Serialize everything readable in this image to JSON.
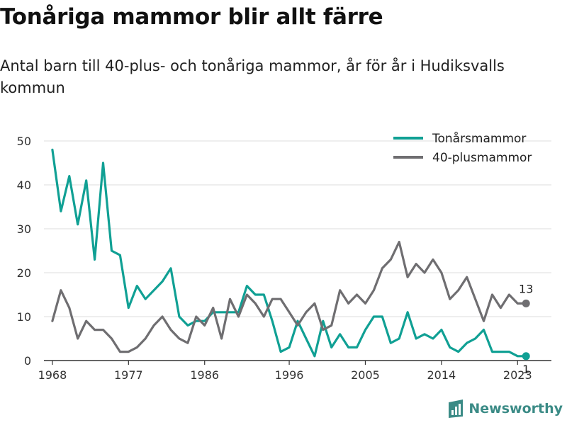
{
  "header": {
    "title": "Tonåriga mammor blir allt färre",
    "subtitle": "Antal barn till 40-plus- och tonåriga mammor, år för år i Hudiksvalls kommun"
  },
  "brand": {
    "name": "Newsworthy",
    "icon": "bar-chart-logo-icon"
  },
  "colors": {
    "teal": "#10a094",
    "gray": "#6f6e71",
    "grid": "#dddddd",
    "axis": "#333333"
  },
  "chart_data": {
    "type": "line",
    "x": [
      1968,
      1969,
      1970,
      1971,
      1972,
      1973,
      1974,
      1975,
      1976,
      1977,
      1978,
      1979,
      1980,
      1981,
      1982,
      1983,
      1984,
      1985,
      1986,
      1987,
      1988,
      1989,
      1990,
      1991,
      1992,
      1993,
      1994,
      1995,
      1996,
      1997,
      1998,
      1999,
      2000,
      2001,
      2002,
      2003,
      2004,
      2005,
      2006,
      2007,
      2008,
      2009,
      2010,
      2011,
      2012,
      2013,
      2014,
      2015,
      2016,
      2017,
      2018,
      2019,
      2020,
      2021,
      2022,
      2023,
      2024
    ],
    "series": [
      {
        "name": "Tonårsmammor",
        "color": "#10a094",
        "values": [
          48,
          34,
          42,
          31,
          41,
          23,
          45,
          25,
          24,
          12,
          17,
          14,
          16,
          18,
          21,
          10,
          8,
          9,
          9,
          11,
          11,
          11,
          11,
          17,
          15,
          15,
          9,
          2,
          3,
          9,
          5,
          1,
          9,
          3,
          6,
          3,
          3,
          7,
          10,
          10,
          4,
          5,
          11,
          5,
          6,
          5,
          7,
          3,
          2,
          4,
          5,
          7,
          2,
          2,
          2,
          1,
          1
        ],
        "end_label": "1"
      },
      {
        "name": "40-plusmammor",
        "color": "#6f6e71",
        "values": [
          9,
          16,
          12,
          5,
          9,
          7,
          7,
          5,
          2,
          2,
          3,
          5,
          8,
          10,
          7,
          5,
          4,
          10,
          8,
          12,
          5,
          14,
          10,
          15,
          13,
          10,
          14,
          14,
          11,
          8,
          11,
          13,
          7,
          8,
          16,
          13,
          15,
          13,
          16,
          21,
          23,
          27,
          19,
          22,
          20,
          23,
          20,
          14,
          16,
          19,
          14,
          9,
          15,
          12,
          15,
          13,
          13
        ],
        "end_label": "13"
      }
    ],
    "xticks": [
      1968,
      1977,
      1986,
      1996,
      2005,
      2014,
      2023
    ],
    "yticks": [
      0,
      10,
      20,
      30,
      40,
      50
    ],
    "ylim": [
      0,
      50
    ],
    "xlim": [
      1967,
      2027
    ],
    "legend": "top-right",
    "grid": "horizontal"
  }
}
